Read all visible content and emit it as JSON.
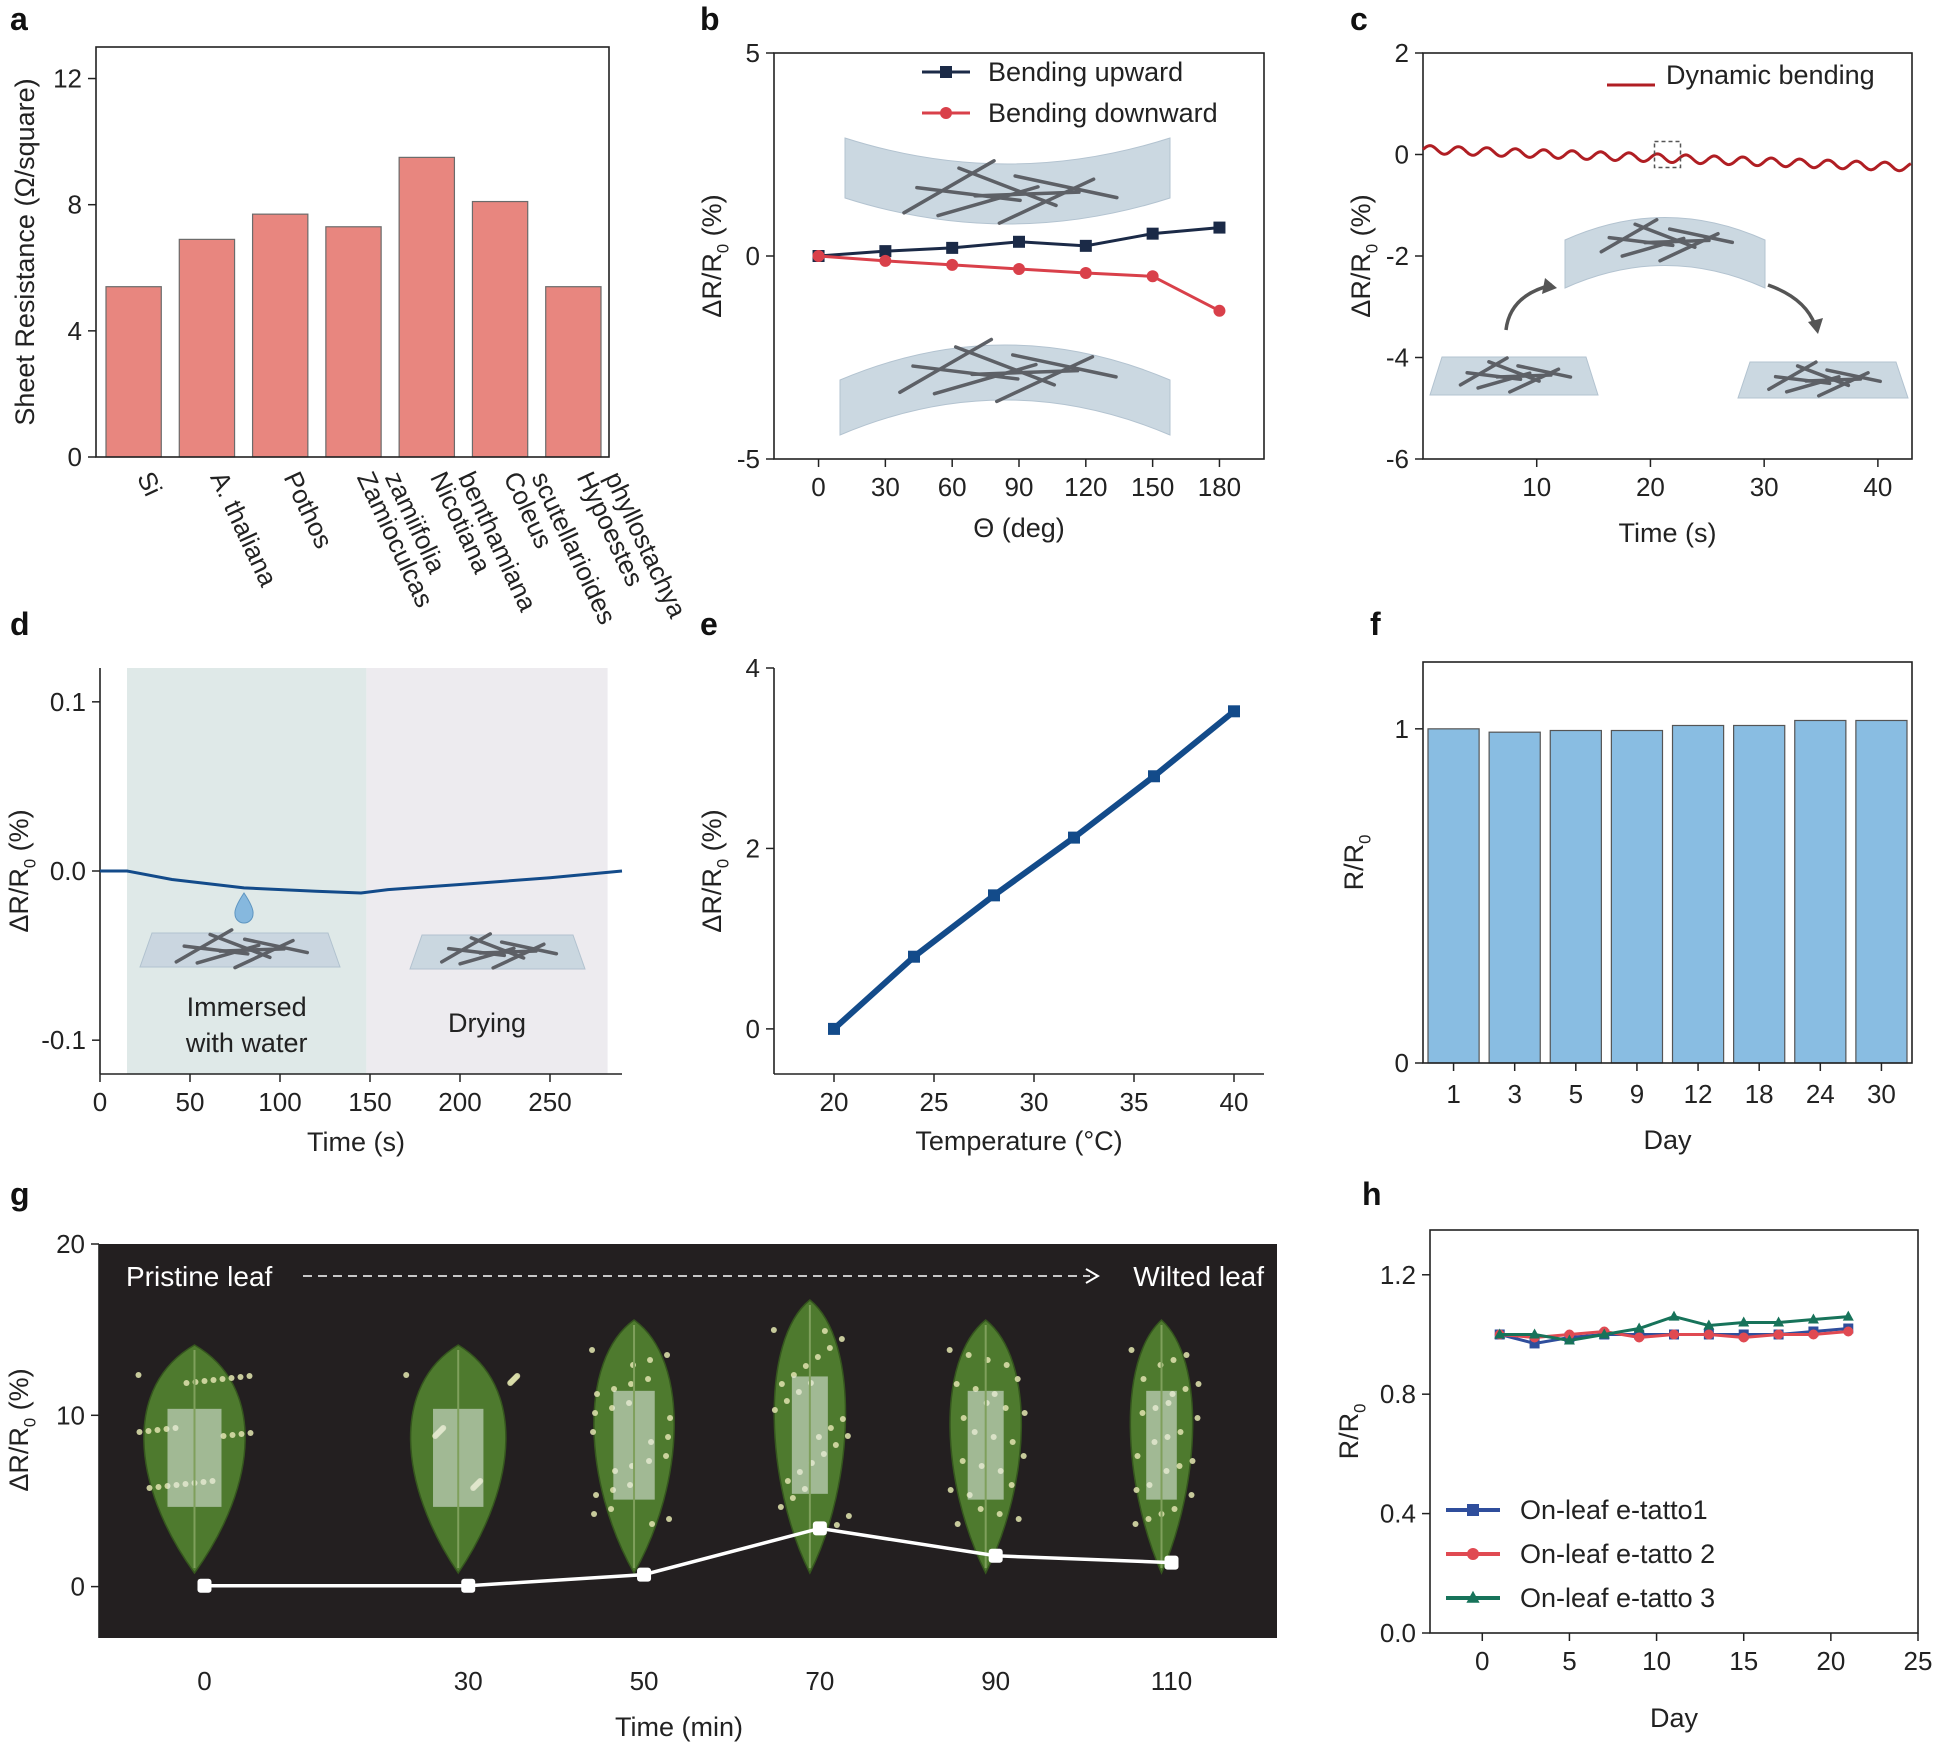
{
  "chart_data": [
    {
      "panel": "a",
      "type": "bar",
      "ylabel": "Sheet Resistance  (Ω/square)",
      "ylim": [
        0,
        13
      ],
      "yticks": [
        0,
        4,
        8,
        12
      ],
      "categories": [
        "Si",
        "A. thaliana",
        "Pothos",
        "Zamioculcas zamiifolia",
        "Nicotiana benthamiana",
        "Coleus scutellarioides",
        "Hypoestes phyllostachya"
      ],
      "category_lines": [
        [
          "Si"
        ],
        [
          "A. thaliana"
        ],
        [
          "Pothos"
        ],
        [
          "Zamioculcas",
          "zamiifolia"
        ],
        [
          "Nicotiana",
          "benthamiana"
        ],
        [
          "Coleus",
          "scutellarioides"
        ],
        [
          "Hypoestes",
          "phyllostachya"
        ]
      ],
      "values": [
        5.4,
        6.9,
        7.7,
        7.3,
        9.5,
        8.1,
        5.4
      ],
      "color": "#E8867F"
    },
    {
      "panel": "b",
      "type": "line",
      "xlabel": "Θ (deg)",
      "ylabel": "ΔR/R0 (%)",
      "xlim": [
        -20,
        200
      ],
      "ylim": [
        -5,
        5
      ],
      "xticks": [
        0,
        30,
        60,
        90,
        120,
        150,
        180
      ],
      "yticks": [
        -5,
        0,
        5
      ],
      "x": [
        0,
        30,
        60,
        90,
        120,
        150,
        180
      ],
      "series": [
        {
          "name": "Bending upward",
          "values": [
            0,
            0.12,
            0.2,
            0.35,
            0.25,
            0.55,
            0.7
          ],
          "color": "#1B2A47",
          "marker": "square"
        },
        {
          "name": "Bending downward",
          "values": [
            0,
            -0.12,
            -0.22,
            -0.32,
            -0.42,
            -0.5,
            -1.35
          ],
          "color": "#D9404A",
          "marker": "circle"
        }
      ]
    },
    {
      "panel": "c",
      "type": "line",
      "xlabel": "Time (s)",
      "ylabel": "ΔR/R0 (%)",
      "xlim": [
        0,
        43
      ],
      "ylim": [
        -6,
        2
      ],
      "xticks": [
        10,
        20,
        30,
        40
      ],
      "yticks": [
        -6,
        -4,
        -2,
        0,
        2
      ],
      "series": [
        {
          "name": "Dynamic bending",
          "color": "#B01E23",
          "trend_start": 0.1,
          "trend_end": -0.25,
          "amplitude": 0.08,
          "period_s": 2.5
        }
      ]
    },
    {
      "panel": "d",
      "type": "line",
      "xlabel": "Time (s)",
      "ylabel": "ΔR/R0 (%)",
      "xlim": [
        0,
        290
      ],
      "ylim": [
        -0.12,
        0.12
      ],
      "xticks": [
        0,
        50,
        100,
        150,
        200,
        250
      ],
      "yticks": [
        -0.1,
        0.0,
        0.1
      ],
      "ytick_labels": [
        "-0.1",
        "0.0",
        "0.1"
      ],
      "x": [
        0,
        15,
        40,
        80,
        120,
        145,
        160,
        200,
        250,
        290
      ],
      "values": [
        0.0,
        0.0,
        -0.005,
        -0.01,
        -0.012,
        -0.013,
        -0.011,
        -0.008,
        -0.004,
        0.0
      ],
      "regions": [
        {
          "label": "Immersed with water",
          "label_lines": [
            "Immersed",
            "with water"
          ],
          "x0": 15,
          "x1": 148,
          "color": "#DFE9E8"
        },
        {
          "label": "Drying",
          "label_lines": [
            "Drying"
          ],
          "x0": 148,
          "x1": 282,
          "color": "#EDEBEF"
        }
      ],
      "color": "#134B8A"
    },
    {
      "panel": "e",
      "type": "line",
      "xlabel": "Temperature (°C)",
      "ylabel": "ΔR/R0 (%)",
      "xlim": [
        17,
        41.5
      ],
      "ylim": [
        -0.5,
        4
      ],
      "xticks": [
        20,
        25,
        30,
        35,
        40
      ],
      "yticks": [
        0,
        2,
        4
      ],
      "x": [
        20,
        24,
        28,
        32,
        36,
        40
      ],
      "values": [
        0,
        0.8,
        1.48,
        2.12,
        2.8,
        3.52
      ],
      "color": "#134B8A"
    },
    {
      "panel": "f",
      "type": "bar",
      "xlabel": "Day",
      "ylabel": "R/R0",
      "ylim": [
        0,
        1.2
      ],
      "yticks": [
        0,
        1
      ],
      "categories": [
        "1",
        "3",
        "5",
        "9",
        "12",
        "18",
        "24",
        "30"
      ],
      "values": [
        1.0,
        0.99,
        0.995,
        0.995,
        1.01,
        1.01,
        1.025,
        1.025
      ],
      "color": "#89BDE2"
    },
    {
      "panel": "g",
      "type": "line",
      "xlabel": "Time (min)",
      "ylabel": "ΔR/R0 (%)",
      "xlim": [
        -12,
        122
      ],
      "ylim": [
        -3,
        20
      ],
      "xticks": [
        0,
        30,
        50,
        70,
        90,
        110
      ],
      "yticks": [
        0,
        10,
        20
      ],
      "x": [
        0,
        30,
        50,
        70,
        90,
        110
      ],
      "values": [
        0.05,
        0.05,
        0.7,
        3.4,
        1.8,
        1.4
      ],
      "banner_left": "Pristine leaf",
      "banner_right": "Wilted leaf",
      "background": "#231F20",
      "color": "#ffffff"
    },
    {
      "panel": "h",
      "type": "line",
      "xlabel": "Day",
      "ylabel": "R/R0",
      "xlim": [
        -3,
        25
      ],
      "ylim": [
        0,
        1.35
      ],
      "xticks": [
        0,
        5,
        10,
        15,
        20,
        25
      ],
      "yticks": [
        0,
        0.4,
        0.8,
        1.2
      ],
      "ytick_labels": [
        "0.0",
        "0.4",
        "0.8",
        "1.2"
      ],
      "x": [
        1,
        3,
        5,
        7,
        9,
        11,
        13,
        15,
        17,
        19,
        21
      ],
      "series": [
        {
          "name": "On-leaf e-tatto1",
          "values": [
            1.0,
            0.97,
            0.99,
            1.0,
            1.0,
            1.0,
            1.0,
            1.0,
            1.0,
            1.01,
            1.02
          ],
          "color": "#2F4E9C",
          "marker": "square"
        },
        {
          "name": "On-leaf e-tatto 2",
          "values": [
            1.0,
            0.99,
            1.0,
            1.01,
            0.99,
            1.0,
            1.0,
            0.99,
            1.0,
            1.0,
            1.01
          ],
          "color": "#E04A52",
          "marker": "circle"
        },
        {
          "name": "On-leaf e-tatto 3",
          "values": [
            1.0,
            1.0,
            0.98,
            1.0,
            1.02,
            1.06,
            1.03,
            1.04,
            1.04,
            1.05,
            1.06
          ],
          "color": "#17735A",
          "marker": "triangle"
        }
      ]
    }
  ]
}
